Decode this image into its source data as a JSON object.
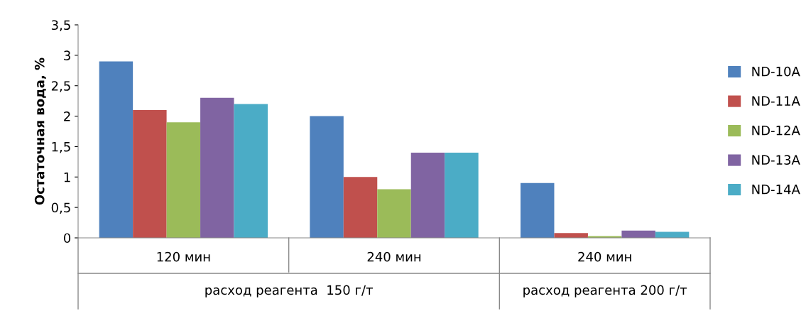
{
  "chart_data": {
    "type": "bar",
    "ylabel": "Остаточная вода, %",
    "categories": [
      "120 мин",
      "240 мин",
      "240 мин"
    ],
    "series": [
      {
        "name": "ND-10A",
        "color": "#4f81bd",
        "values": [
          2.9,
          2.0,
          0.9
        ]
      },
      {
        "name": "ND-11A",
        "color": "#c0504d",
        "values": [
          2.1,
          1.0,
          0.08
        ]
      },
      {
        "name": "ND-12A",
        "color": "#9bbb59",
        "values": [
          1.9,
          0.8,
          0.03
        ]
      },
      {
        "name": "ND-13A",
        "color": "#8064a2",
        "values": [
          2.3,
          1.4,
          0.12
        ]
      },
      {
        "name": "ND-14A",
        "color": "#4bacc6",
        "values": [
          2.2,
          1.4,
          0.1
        ]
      }
    ],
    "ylim": [
      0,
      3.5
    ],
    "yticks": [
      0,
      {
        "value": 0.5,
        "label": "0,5"
      },
      1,
      {
        "value": 1.5,
        "label": "1,5"
      },
      2,
      {
        "value": 2.5,
        "label": "2,5"
      },
      3,
      {
        "value": 3.5,
        "label": "3,5"
      }
    ],
    "annotations": [
      "расход реагента  150 г/т",
      "расход реагента 200 г/т"
    ],
    "legend": "right",
    "grid": false
  }
}
